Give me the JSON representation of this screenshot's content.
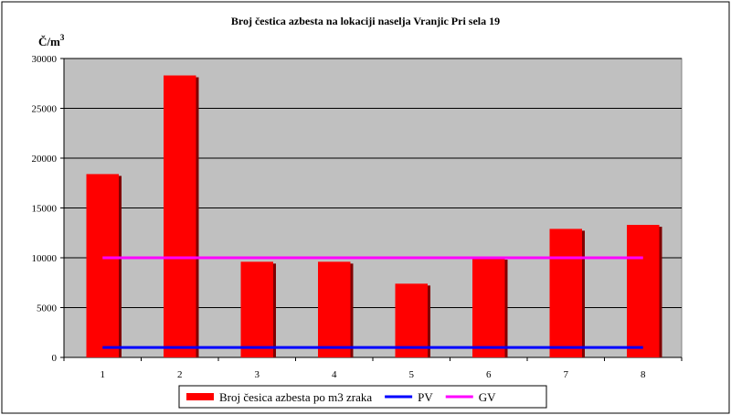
{
  "chart_data": {
    "type": "bar",
    "title": "Broj čestica azbesta na lokaciji naselja Vranjic Pri sela 19",
    "ylabel": "Č/m",
    "ylabel_superscript": "3",
    "xlabel": "",
    "categories": [
      "1",
      "2",
      "3",
      "4",
      "5",
      "6",
      "7",
      "8"
    ],
    "ylim": [
      0,
      30000
    ],
    "yticks": [
      0,
      5000,
      10000,
      15000,
      20000,
      25000,
      30000
    ],
    "grid": true,
    "legend_position": "bottom",
    "series": [
      {
        "name": "Broj česica azbesta po m3 zraka",
        "kind": "bar",
        "color": "#ff0000",
        "values": [
          18400,
          28300,
          9600,
          9600,
          7400,
          10000,
          12900,
          13300
        ]
      },
      {
        "name": "PV",
        "kind": "line",
        "color": "#0000ff",
        "values": [
          1000,
          1000,
          1000,
          1000,
          1000,
          1000,
          1000,
          1000
        ]
      },
      {
        "name": "GV",
        "kind": "line",
        "color": "#ff00ff",
        "values": [
          10000,
          10000,
          10000,
          10000,
          10000,
          10000,
          10000,
          10000
        ]
      }
    ],
    "colors": {
      "plot_background": "#c0c0c0",
      "bar_shadow": "#800000"
    }
  }
}
